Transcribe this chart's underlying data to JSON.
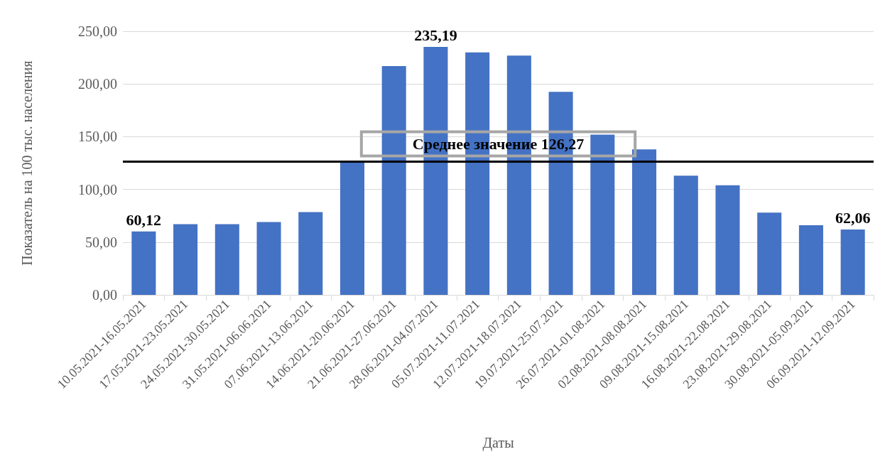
{
  "chart_data": {
    "type": "bar",
    "xlabel": "Даты",
    "ylabel": "Показатель на 100 тыс. населения",
    "categories": [
      "10.05.2021-16.05.2021",
      "17.05.2021-23.05.2021",
      "24.05.2021-30.05.2021",
      "31.05.2021-06.06.2021",
      "07.06.2021-13.06.2021",
      "14.06.2021-20.06.2021",
      "21.06.2021-27.06.2021",
      "28.06.2021-04.07.2021",
      "05.07.2021-11.07.2021",
      "12.07.2021-18.07.2021",
      "19.07.2021-25.07.2021",
      "26.07.2021-01.08.2021",
      "02.08.2021-08.08.2021",
      "09.08.2021-15.08.2021",
      "16.08.2021-22.08.2021",
      "23.08.2021-29.08.2021",
      "30.08.2021-05.09.2021",
      "06.09.2021-12.09.2021"
    ],
    "values": [
      60.12,
      67,
      67,
      69,
      78.5,
      125.5,
      217,
      235.19,
      230,
      227,
      192.5,
      152,
      138,
      113,
      104,
      78,
      66,
      62.06
    ],
    "value_labels": [
      "60,12",
      null,
      null,
      null,
      null,
      null,
      null,
      "235,19",
      null,
      null,
      null,
      null,
      null,
      null,
      null,
      null,
      null,
      "62,06"
    ],
    "color": "#4472c4",
    "ylim": [
      0,
      250
    ],
    "yticks": [
      {
        "value": 0,
        "label": "0,00"
      },
      {
        "value": 50,
        "label": "50,00"
      },
      {
        "value": 100,
        "label": "100,00"
      },
      {
        "value": 150,
        "label": "150,00"
      },
      {
        "value": 200,
        "label": "200,00"
      },
      {
        "value": 250,
        "label": "250,00"
      }
    ],
    "ref_lines": [
      {
        "axis": "y",
        "value": 126.27,
        "label": "Среднее значение 126,27",
        "color": "#000000"
      }
    ],
    "grid": "y"
  }
}
